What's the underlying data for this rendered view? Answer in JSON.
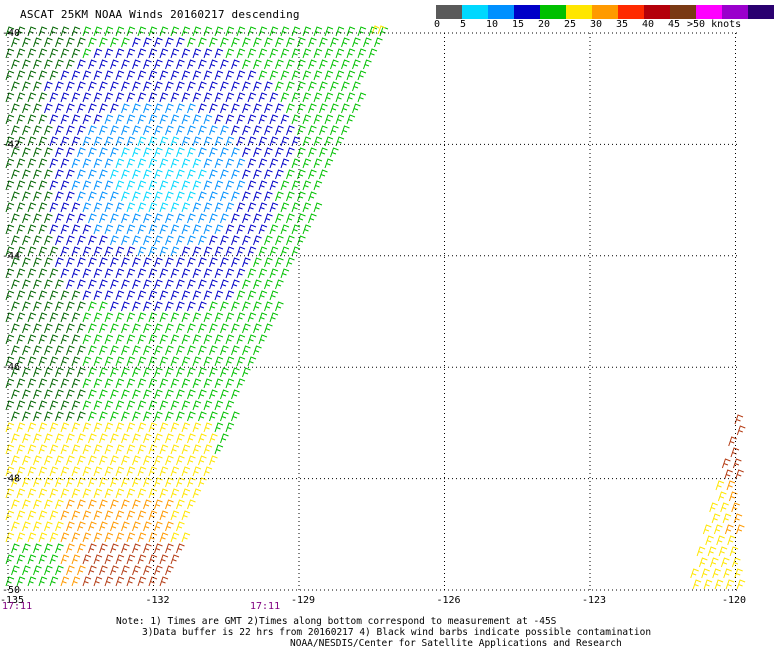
{
  "title": "ASCAT 25KM NOAA Winds 20160217 descending",
  "legend": {
    "bins": [
      {
        "color": "#5a5a5a",
        "label": "0"
      },
      {
        "color": "#00d8ff",
        "label": "5"
      },
      {
        "color": "#0090ff",
        "label": "10"
      },
      {
        "color": "#0000c8",
        "label": "15"
      },
      {
        "color": "#00c000",
        "label": "20"
      },
      {
        "color": "#ffe600",
        "label": "25"
      },
      {
        "color": "#ff9a00",
        "label": "30"
      },
      {
        "color": "#ff2a00",
        "label": "35"
      },
      {
        "color": "#b4000a",
        "label": "40"
      },
      {
        "color": "#7a3a14",
        "label": "45"
      },
      {
        "color": "#ff00ff",
        "label": ""
      },
      {
        "color": "#9a00cc",
        "label": ""
      },
      {
        "color": "#2a0070",
        "label": ""
      }
    ],
    "last_label": ">50 knots"
  },
  "axes": {
    "latitudes": [
      "-40",
      "-42",
      "-44",
      "-46",
      "-48",
      "-50"
    ],
    "longitudes": [
      "-135",
      "-132",
      "-129",
      "-126",
      "-123",
      "-120"
    ],
    "lon_range": [
      -135,
      -120
    ],
    "lat_range": [
      -50,
      -40
    ]
  },
  "times": [
    "17:11",
    "17:11"
  ],
  "notes": [
    "Note: 1) Times are GMT 2)Times along bottom correspond to measurement at -45S",
    "3)Data buffer is 22 hrs from 20160217 4) Black wind barbs indicate possible contamination",
    "NOAA/NESDIS/Center for Satellite Applications and Research"
  ],
  "colors": {
    "grid": "#000000",
    "time_label": "#800080",
    "dark_green": "#006400",
    "green": "#00c000",
    "navy": "#0000c8",
    "blue": "#0090ff",
    "cyan": "#00d8ff",
    "yellow": "#ffe600",
    "orange": "#ff9a00",
    "red_brown": "#b43c14"
  }
}
